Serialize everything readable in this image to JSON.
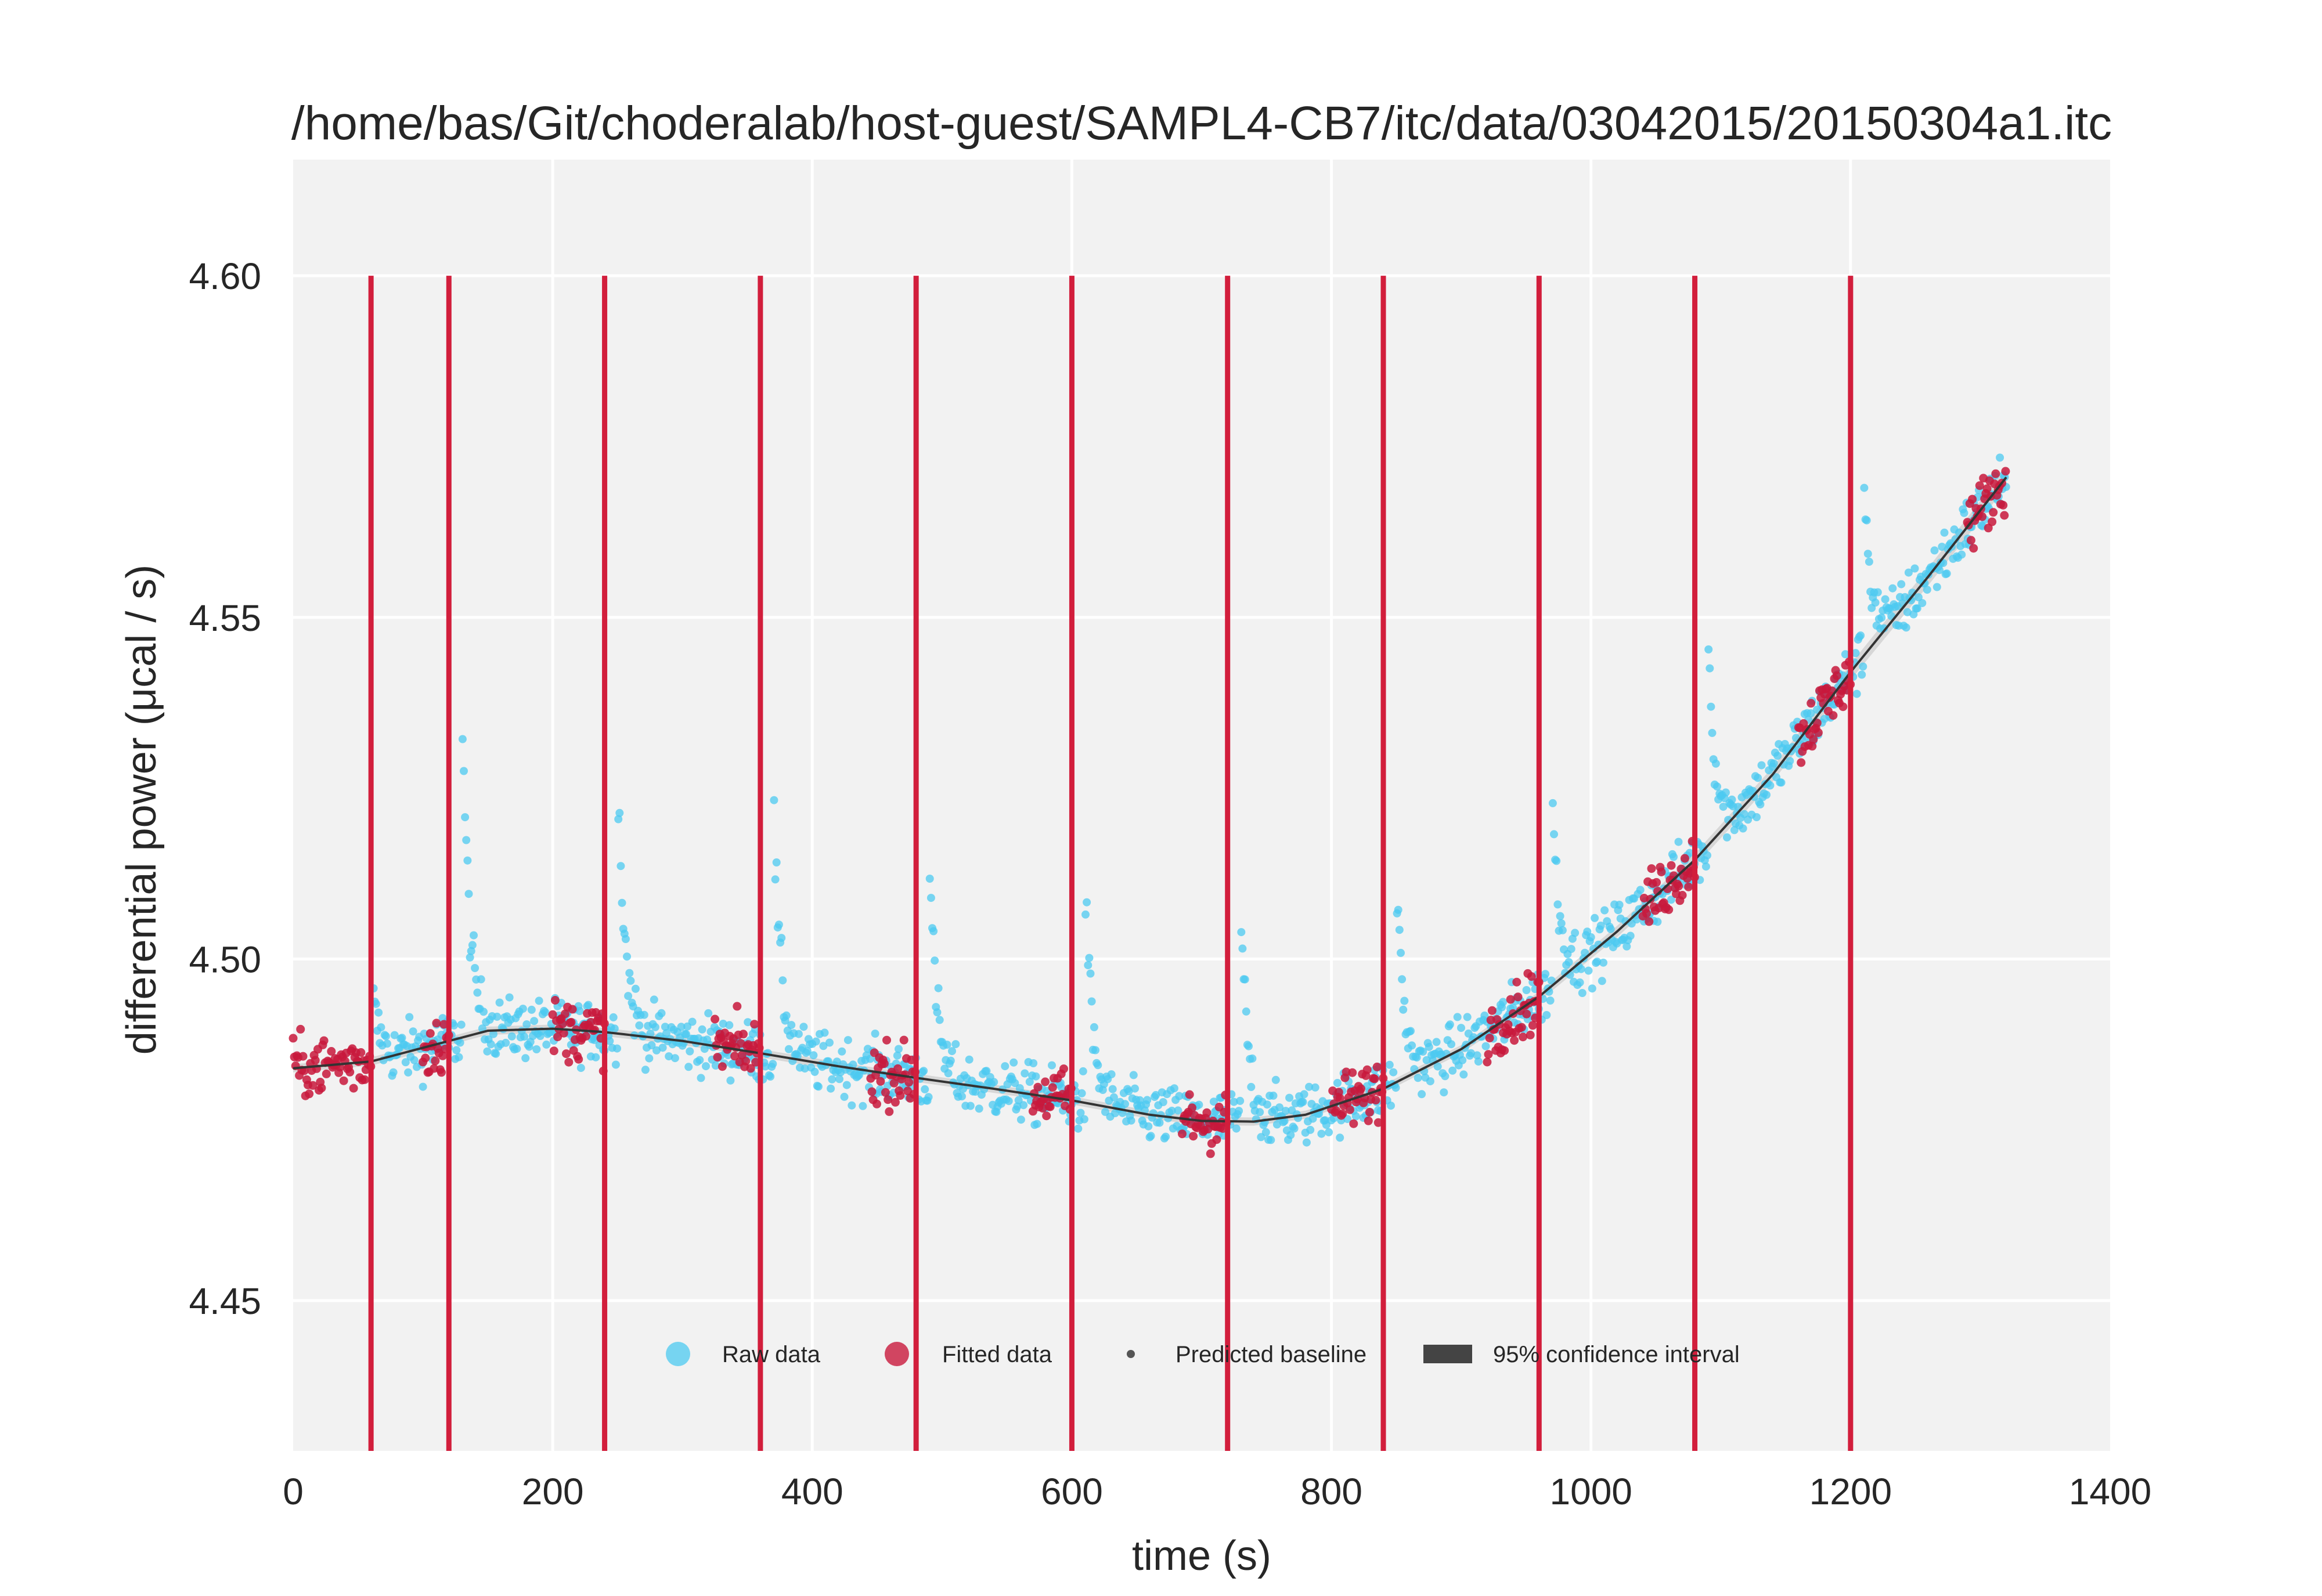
{
  "chart_data": {
    "type": "scatter",
    "title": "/home/bas/Git/choderalab/host-guest/SAMPL4-CB7/itc/data/03042015/20150304a1.itc",
    "xlabel": "time (s)",
    "ylabel": "differential power (μcal / s)",
    "xlim": [
      0,
      1400
    ],
    "ylim": [
      4.428,
      4.617
    ],
    "xticks": [
      0,
      200,
      400,
      600,
      800,
      1000,
      1200,
      1400
    ],
    "xtick_labels": [
      "0",
      "200",
      "400",
      "600",
      "800",
      "1000",
      "1200",
      "1400"
    ],
    "yticks": [
      4.45,
      4.5,
      4.55,
      4.6
    ],
    "ytick_labels": [
      "4.45",
      "4.50",
      "4.55",
      "4.60"
    ],
    "grid": true,
    "legend_position": "lower-center",
    "legend": [
      {
        "label": "Raw data",
        "marker": "circle",
        "color": "#4cc9f0"
      },
      {
        "label": "Fitted data",
        "marker": "circle",
        "color": "#c8193c"
      },
      {
        "label": "Predicted baseline",
        "marker": "small-dot",
        "color": "#555555"
      },
      {
        "label": "95% confidence interval",
        "marker": "rect",
        "color": "#444444"
      }
    ],
    "colors": {
      "raw": "#4cc9f0",
      "fitted": "#c8193c",
      "injection": "#d21e3c",
      "baseline": "#333333",
      "background": "#f2f2f2",
      "grid": "#ffffff"
    },
    "injections": {
      "times": [
        60,
        120,
        240,
        360,
        480,
        600,
        720,
        840,
        960,
        1080,
        1200
      ],
      "y_range": [
        4.428,
        4.6
      ]
    },
    "baseline": {
      "x": [
        0,
        60,
        120,
        150,
        200,
        240,
        300,
        360,
        420,
        480,
        540,
        600,
        660,
        700,
        740,
        780,
        840,
        900,
        960,
        1020,
        1080,
        1140,
        1200,
        1260,
        1320
      ],
      "y": [
        4.484,
        4.485,
        4.488,
        4.4895,
        4.4898,
        4.4893,
        4.488,
        4.4862,
        4.4843,
        4.4826,
        4.481,
        4.4793,
        4.4772,
        4.4763,
        4.4762,
        4.4772,
        4.481,
        4.4868,
        4.4945,
        4.504,
        4.5145,
        4.527,
        4.542,
        4.556,
        4.5705
      ]
    },
    "raw_segments": [
      {
        "t0": 62,
        "t1": 120,
        "peak": 4.4935,
        "peak_t": 62
      },
      {
        "t0": 122,
        "t1": 240,
        "peak": 4.5385,
        "peak_t": 130
      },
      {
        "t0": 242,
        "t1": 360,
        "peak": 4.529,
        "peak_t": 250
      },
      {
        "t0": 362,
        "t1": 480,
        "peak": 4.5235,
        "peak_t": 370
      },
      {
        "t0": 482,
        "t1": 600,
        "peak": 4.5155,
        "peak_t": 490
      },
      {
        "t0": 602,
        "t1": 720,
        "peak": 4.5125,
        "peak_t": 610
      },
      {
        "t0": 722,
        "t1": 840,
        "peak": 4.5085,
        "peak_t": 730
      },
      {
        "t0": 842,
        "t1": 960,
        "peak": 4.5125,
        "peak_t": 850
      },
      {
        "t0": 962,
        "t1": 1080,
        "peak": 4.5245,
        "peak_t": 970
      },
      {
        "t0": 1082,
        "t1": 1200,
        "peak": 4.5485,
        "peak_t": 1090
      },
      {
        "t0": 1202,
        "t1": 1320,
        "peak": 4.5725,
        "peak_t": 1210
      }
    ],
    "fitted_segments": [
      {
        "t0": 0,
        "t1": 60
      },
      {
        "t0": 100,
        "t1": 120
      },
      {
        "t0": 200,
        "t1": 240
      },
      {
        "t0": 325,
        "t1": 360
      },
      {
        "t0": 445,
        "t1": 480
      },
      {
        "t0": 570,
        "t1": 600
      },
      {
        "t0": 685,
        "t1": 720
      },
      {
        "t0": 800,
        "t1": 840
      },
      {
        "t0": 920,
        "t1": 960
      },
      {
        "t0": 1040,
        "t1": 1080
      },
      {
        "t0": 1160,
        "t1": 1200
      },
      {
        "t0": 1290,
        "t1": 1320
      }
    ],
    "noise_sd": 0.0022
  }
}
